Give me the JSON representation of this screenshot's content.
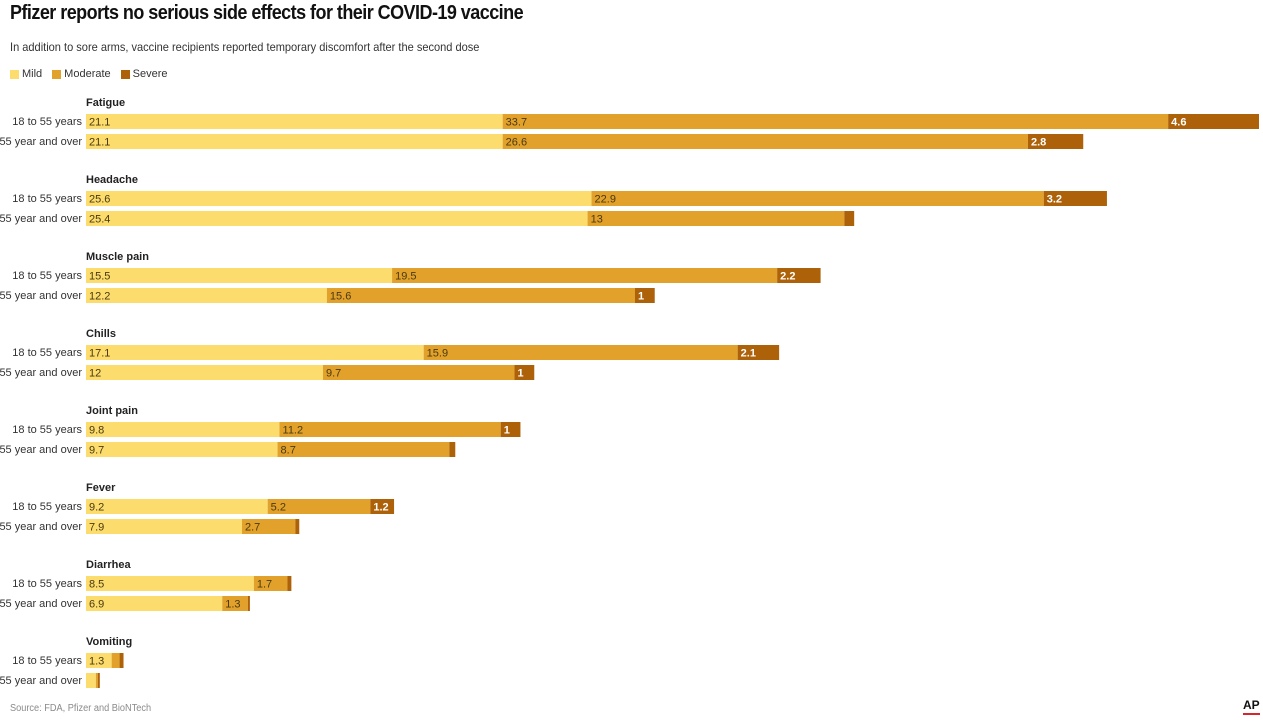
{
  "title": "Pfizer reports no serious side effects for their COVID-19 vaccine",
  "subtitle": "In addition to sore arms, vaccine recipients reported temporary discomfort after the second dose",
  "legend": [
    {
      "name": "Mild",
      "color": "#fbdc6c"
    },
    {
      "name": "Moderate",
      "color": "#e1a12a"
    },
    {
      "name": "Severe",
      "color": "#ad6209"
    }
  ],
  "source": "Source: FDA, Pfizer and BioNTech",
  "logo": "AP",
  "chart_data": {
    "type": "bar",
    "orientation": "horizontal",
    "stacked": true,
    "series_names": [
      "Mild",
      "Moderate",
      "Severe"
    ],
    "colors": [
      "#fbdc6c",
      "#e1a12a",
      "#ad6209"
    ],
    "xlim": [
      0,
      59.4
    ],
    "grid": false,
    "legend_position": "top-left",
    "groups": [
      {
        "label": "Fatigue",
        "rows": [
          {
            "label": "18 to 55 years",
            "values": [
              21.1,
              33.7,
              4.6
            ],
            "labels": [
              "21.1",
              "33.7",
              "4.6"
            ]
          },
          {
            "label": "55 year and over",
            "values": [
              21.1,
              26.6,
              2.8
            ],
            "labels": [
              "21.1",
              "26.6",
              "2.8"
            ]
          }
        ]
      },
      {
        "label": "Headache",
        "rows": [
          {
            "label": "18 to 55 years",
            "values": [
              25.6,
              22.9,
              3.2
            ],
            "labels": [
              "25.6",
              "22.9",
              "3.2"
            ]
          },
          {
            "label": "55 year and over",
            "values": [
              25.4,
              13,
              0.5
            ],
            "labels": [
              "25.4",
              "13",
              ""
            ]
          }
        ]
      },
      {
        "label": "Muscle pain",
        "rows": [
          {
            "label": "18 to 55 years",
            "values": [
              15.5,
              19.5,
              2.2
            ],
            "labels": [
              "15.5",
              "19.5",
              "2.2"
            ]
          },
          {
            "label": "55 year and over",
            "values": [
              12.2,
              15.6,
              1
            ],
            "labels": [
              "12.2",
              "15.6",
              "1"
            ]
          }
        ]
      },
      {
        "label": "Chills",
        "rows": [
          {
            "label": "18 to 55 years",
            "values": [
              17.1,
              15.9,
              2.1
            ],
            "labels": [
              "17.1",
              "15.9",
              "2.1"
            ]
          },
          {
            "label": "55 year and over",
            "values": [
              12,
              9.7,
              1
            ],
            "labels": [
              "12",
              "9.7",
              "1"
            ]
          }
        ]
      },
      {
        "label": "Joint pain",
        "rows": [
          {
            "label": "18 to 55 years",
            "values": [
              9.8,
              11.2,
              1
            ],
            "labels": [
              "9.8",
              "11.2",
              "1"
            ]
          },
          {
            "label": "55 year and over",
            "values": [
              9.7,
              8.7,
              0.3
            ],
            "labels": [
              "9.7",
              "8.7",
              ""
            ]
          }
        ]
      },
      {
        "label": "Fever",
        "rows": [
          {
            "label": "18 to 55 years",
            "values": [
              9.2,
              5.2,
              1.2
            ],
            "labels": [
              "9.2",
              "5.2",
              "1.2"
            ]
          },
          {
            "label": "55 year and over",
            "values": [
              7.9,
              2.7,
              0.2
            ],
            "labels": [
              "7.9",
              "2.7",
              ""
            ]
          }
        ]
      },
      {
        "label": "Diarrhea",
        "rows": [
          {
            "label": "18 to 55 years",
            "values": [
              8.5,
              1.7,
              0.2
            ],
            "labels": [
              "8.5",
              "1.7",
              ""
            ]
          },
          {
            "label": "55 year and over",
            "values": [
              6.9,
              1.3,
              0.1
            ],
            "labels": [
              "6.9",
              "1.3",
              ""
            ]
          }
        ]
      },
      {
        "label": "Vomiting",
        "rows": [
          {
            "label": "18 to 55 years",
            "values": [
              1.3,
              0.4,
              0.2
            ],
            "labels": [
              "1.3",
              "",
              ""
            ]
          },
          {
            "label": "55 year and over",
            "values": [
              0.5,
              0.1,
              0.1
            ],
            "labels": [
              "",
              "",
              ""
            ]
          }
        ]
      }
    ]
  }
}
